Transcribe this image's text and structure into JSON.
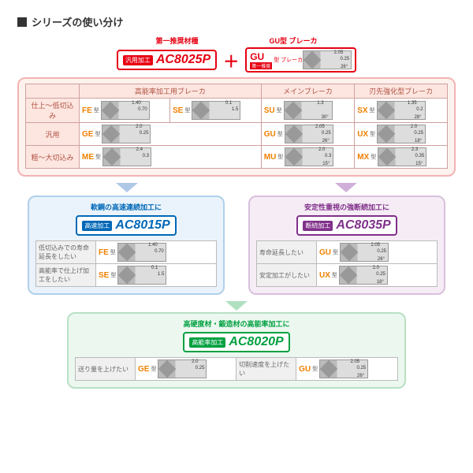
{
  "title": "シリーズの使い分け",
  "top": {
    "label1": "第一推奨材種",
    "label2": "型 ブレーカ",
    "tag": "汎用加工",
    "grade": "AC8025P",
    "plus": "＋",
    "gu": "GU",
    "gu_sub": "第一推奨"
  },
  "colors": {
    "red": "#e60012",
    "blue": "#0068b7",
    "purple": "#80308a",
    "green": "#00a040",
    "panel_top": "#fef2ee",
    "panel_blue": "#eaf3fb",
    "panel_purple": "#f5ecf5",
    "panel_green": "#ecf8ef"
  },
  "headers": {
    "c1": "高能率加工用ブレーカ",
    "c2": "メインブレーカ",
    "c3": "刃先強化型ブレーカ"
  },
  "rows": {
    "r1": "仕上～低切込み",
    "r2": "汎用",
    "r3": "粗～大切込み"
  },
  "breakers": {
    "FE": {
      "name": "FE",
      "n1": "1.40",
      "n2": "0.70",
      "a": ""
    },
    "SE": {
      "name": "SE",
      "n1": "0.1",
      "n2": "1.5",
      "a": ""
    },
    "SU": {
      "name": "SU",
      "n1": "1.3",
      "n2": "",
      "a": "30°"
    },
    "SX": {
      "name": "SX",
      "n1": "0.2",
      "n2": "1.35",
      "a": "28°"
    },
    "GE": {
      "name": "GE",
      "n1": "0.25",
      "n2": "2.0",
      "a": ""
    },
    "GU": {
      "name": "GU",
      "n1": "0.25",
      "n2": "2.05",
      "a": "26°"
    },
    "UX": {
      "name": "UX",
      "n1": "0.25",
      "n2": "2.0",
      "a": "18°"
    },
    "ME": {
      "name": "ME",
      "n1": "0.3",
      "n2": "2.4",
      "a": ""
    },
    "MU": {
      "name": "MU",
      "n1": "0.3",
      "n2": "2.0",
      "a": "15°"
    },
    "MX": {
      "name": "MX",
      "n1": "0.35",
      "n2": "2.3",
      "a": "15°"
    }
  },
  "type_suffix": "型",
  "blue_panel": {
    "title": "軟鋼の高速連続加工に",
    "tag": "高速加工",
    "grade": "AC8015P",
    "rows": [
      {
        "lbl": "低切込みでの寿命延長をしたい",
        "bk": "FE"
      },
      {
        "lbl": "高能率で仕上げ加工をしたい",
        "bk": "SE"
      }
    ]
  },
  "purple_panel": {
    "title": "安定性重視の強断続加工に",
    "tag": "断続加工",
    "grade": "AC8035P",
    "rows": [
      {
        "lbl": "寿命延長したい",
        "bk": "GU"
      },
      {
        "lbl": "安定加工がしたい",
        "bk": "UX"
      }
    ]
  },
  "green_panel": {
    "title": "高硬度材・鍛造材の高能率加工に",
    "tag": "高能率加工",
    "grade": "AC8020P",
    "rows": [
      {
        "lbl": "送り量を上げたい",
        "bk": "GE"
      },
      {
        "lbl": "切削速度を上げたい",
        "bk": "GU"
      }
    ]
  }
}
